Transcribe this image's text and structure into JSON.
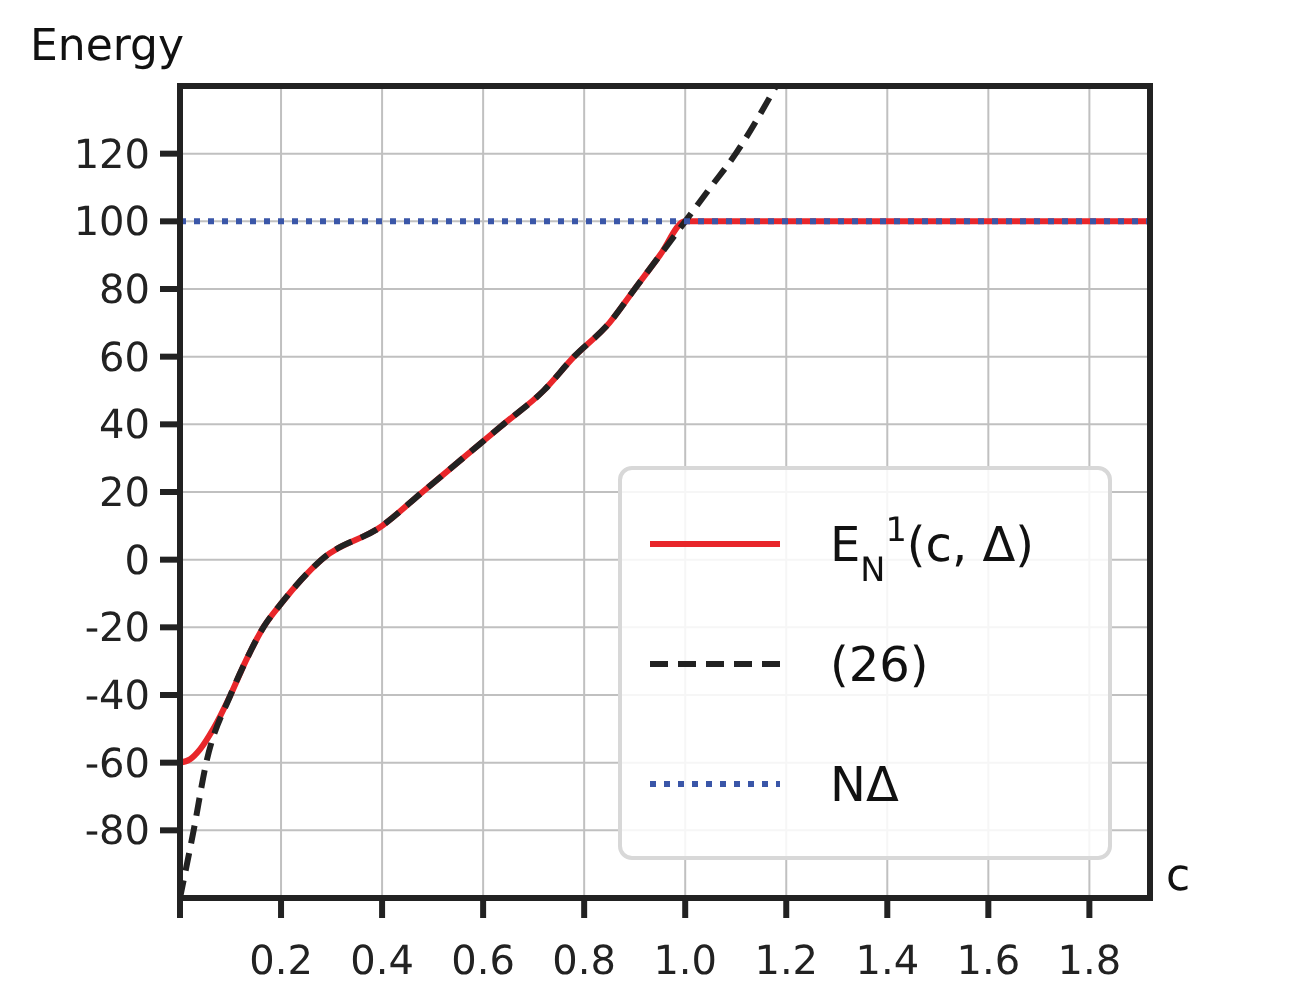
{
  "chart_data": {
    "type": "line",
    "xlabel": "c",
    "ylabel": "Energy",
    "xlim": [
      0,
      1.92
    ],
    "ylim": [
      -100,
      140
    ],
    "xticks": [
      {
        "value": 0,
        "label": null
      },
      {
        "value": 0.2,
        "label": "0.2"
      },
      {
        "value": 0.4,
        "label": "0.4"
      },
      {
        "value": 0.6,
        "label": "0.6"
      },
      {
        "value": 0.8,
        "label": "0.8"
      },
      {
        "value": 1.0,
        "label": "1.0"
      },
      {
        "value": 1.2,
        "label": "1.2"
      },
      {
        "value": 1.4,
        "label": "1.4"
      },
      {
        "value": 1.6,
        "label": "1.6"
      },
      {
        "value": 1.8,
        "label": "1.8"
      }
    ],
    "yticks": [
      -80,
      -60,
      -40,
      -20,
      0,
      20,
      40,
      60,
      80,
      100,
      120
    ],
    "grid": true,
    "legend": "bottom right",
    "series": [
      {
        "name": "E$_{N}$$^{1}$(c, Δ)",
        "color": "#e8262a",
        "line_style": "solid",
        "x": [
          0,
          0.02,
          0.04,
          0.066,
          0.1,
          0.13,
          0.165,
          0.2,
          0.28,
          0.4,
          0.48,
          0.56,
          0.64,
          0.72,
          0.78,
          0.85,
          0.9,
          0.95,
          1.0,
          1.2,
          1.5,
          1.92
        ],
        "values": [
          -60,
          -59,
          -56,
          -50,
          -40,
          -30,
          -20,
          -13,
          0,
          10,
          20,
          30,
          40,
          50,
          60,
          70,
          80,
          90,
          100,
          100,
          100,
          100
        ]
      },
      {
        "name": "(26)",
        "color": "#222222",
        "line_style": "dashed",
        "x": [
          0,
          0.027,
          0.052,
          0.1,
          0.13,
          0.165,
          0.2,
          0.28,
          0.4,
          0.48,
          0.56,
          0.64,
          0.72,
          0.78,
          0.85,
          0.9,
          0.95,
          1.0,
          1.05,
          1.1,
          1.18
        ],
        "values": [
          -100,
          -80,
          -60,
          -40,
          -30,
          -20,
          -13,
          0,
          10,
          20,
          30,
          40,
          50,
          60,
          70,
          80,
          90,
          100,
          110,
          120,
          140
        ]
      },
      {
        "name": "NΔ",
        "color": "#3a56a8",
        "line_style": "dotted",
        "x": [
          0,
          1.92
        ],
        "values": [
          100,
          100
        ]
      }
    ]
  }
}
